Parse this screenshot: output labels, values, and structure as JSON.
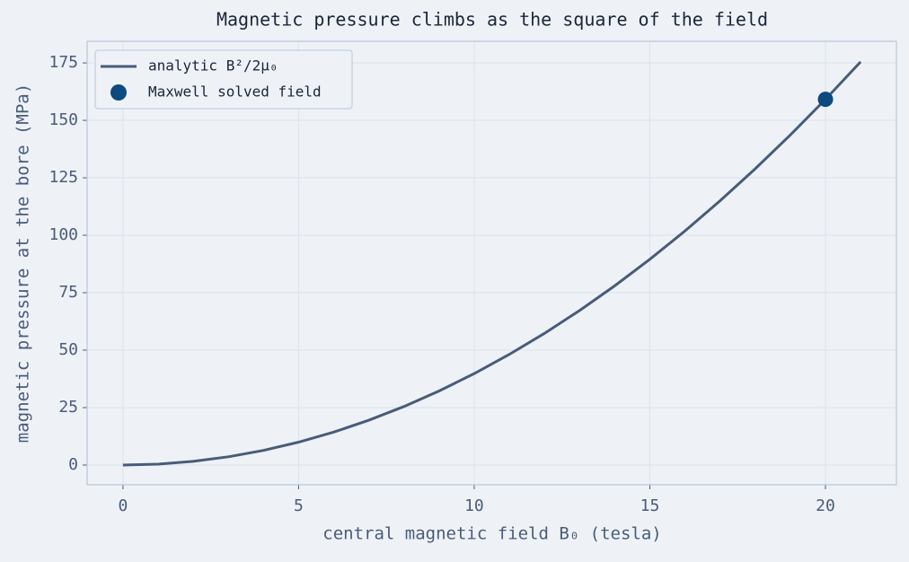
{
  "chart_data": {
    "type": "line",
    "title": "Magnetic pressure climbs as the square of the field",
    "x_label": "central magnetic field  B₀  (tesla)",
    "y_label": "magnetic pressure at the bore  (MPa)",
    "series": [
      {
        "name": "analytic  B²/2μ₀",
        "color": "#4a5b78",
        "mode": "line",
        "x": [
          0,
          1,
          2,
          3,
          4,
          5,
          6,
          7,
          8,
          9,
          10,
          11,
          12,
          13,
          14,
          15,
          16,
          17,
          18,
          19,
          20,
          21
        ],
        "values": [
          0,
          0.4,
          1.59,
          3.58,
          6.37,
          9.95,
          14.32,
          19.5,
          25.46,
          32.23,
          39.79,
          48.15,
          57.3,
          67.25,
          77.99,
          89.52,
          101.86,
          114.99,
          128.92,
          143.64,
          159.15,
          175.47
        ]
      },
      {
        "name": "Maxwell solved field",
        "color": "#0d4a80",
        "mode": "scatter",
        "x": [
          20
        ],
        "values": [
          159.15
        ]
      }
    ],
    "xlim": [
      -1.02,
      22.02
    ],
    "xticks": [
      0,
      5,
      10,
      15,
      20
    ],
    "ylim": [
      -8.6,
      184.4
    ],
    "yticks": [
      0,
      25,
      50,
      75,
      100,
      125,
      150,
      175
    ],
    "grid": true,
    "legend": "upper left"
  }
}
